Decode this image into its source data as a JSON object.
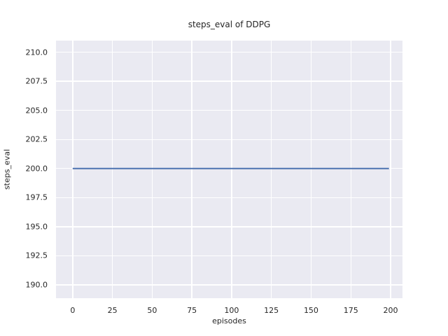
{
  "chart_data": {
    "type": "line",
    "title": "steps_eval of DDPG",
    "xlabel": "episodes",
    "ylabel": "steps_eval",
    "x_ticks": [
      0,
      25,
      50,
      75,
      100,
      125,
      150,
      175,
      200
    ],
    "x_tick_labels": [
      "0",
      "25",
      "50",
      "75",
      "100",
      "125",
      "150",
      "175",
      "200"
    ],
    "y_ticks": [
      190.0,
      192.5,
      195.0,
      197.5,
      200.0,
      202.5,
      205.0,
      207.5,
      210.0
    ],
    "y_tick_labels": [
      "190.0",
      "192.5",
      "195.0",
      "197.5",
      "200.0",
      "202.5",
      "205.0",
      "207.5",
      "210.0"
    ],
    "xlim": [
      -10.5,
      207.5
    ],
    "ylim": [
      188.85,
      211.0
    ],
    "grid": true,
    "legend": false,
    "plot_background": "#eaeaf2",
    "grid_color": "#ffffff",
    "text_color": "#262626",
    "series": [
      {
        "name": "DDPG steps_eval",
        "color": "#4c72b0",
        "linewidth": 2,
        "x": [
          0,
          199
        ],
        "y": [
          200,
          200
        ],
        "note": "constant value 200 across all evaluated episodes"
      }
    ]
  }
}
